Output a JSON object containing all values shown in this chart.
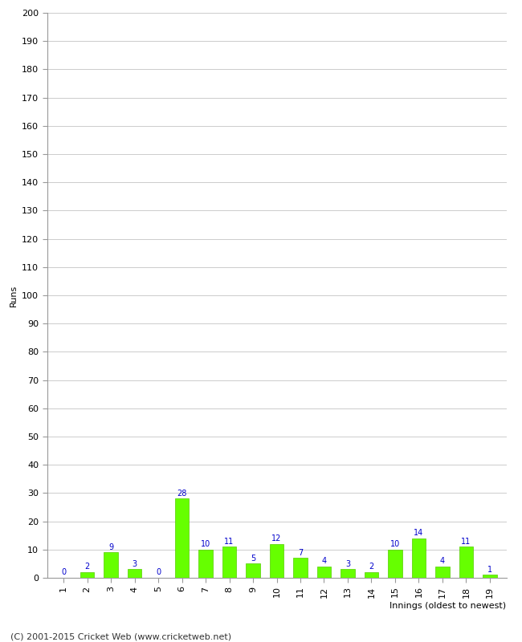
{
  "xlabel": "Innings (oldest to newest)",
  "ylabel": "Runs",
  "innings": [
    1,
    2,
    3,
    4,
    5,
    6,
    7,
    8,
    9,
    10,
    11,
    12,
    13,
    14,
    15,
    16,
    17,
    18,
    19
  ],
  "values": [
    0,
    2,
    9,
    3,
    0,
    28,
    10,
    11,
    5,
    12,
    7,
    4,
    3,
    2,
    10,
    14,
    4,
    11,
    1
  ],
  "bar_color": "#66ff00",
  "bar_edge_color": "#55cc00",
  "label_color": "#0000cc",
  "ylim": [
    0,
    200
  ],
  "ytick_step": 10,
  "background_color": "#ffffff",
  "grid_color": "#cccccc",
  "footer": "(C) 2001-2015 Cricket Web (www.cricketweb.net)",
  "axis_label_fontsize": 8,
  "tick_fontsize": 8,
  "value_label_fontsize": 7,
  "footer_fontsize": 8
}
